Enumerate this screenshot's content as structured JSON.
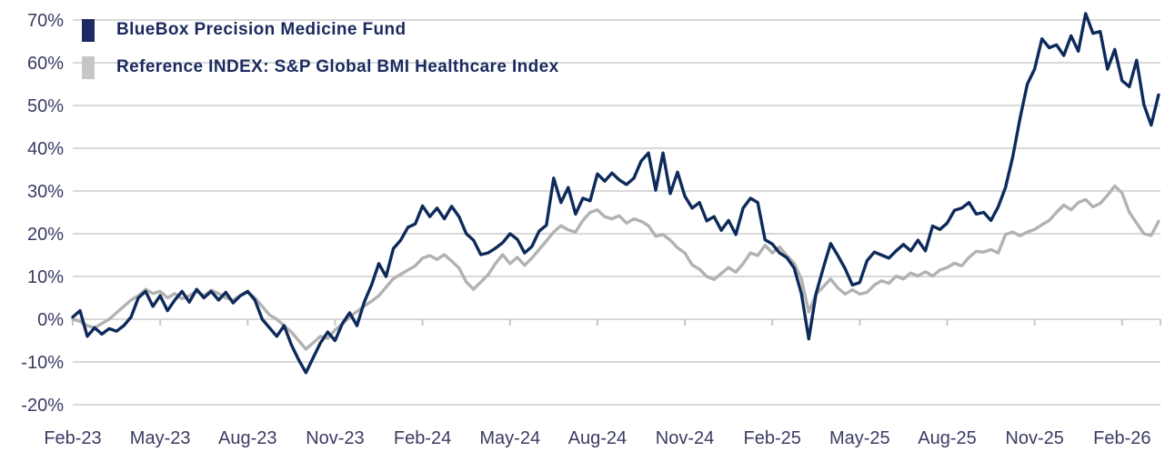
{
  "chart_data": {
    "type": "line",
    "title": "",
    "xlabel": "",
    "ylabel": "",
    "x_unit": "months since Feb-2023, sampled every 0.25 month",
    "x_start": 0,
    "x_step": 0.25,
    "x_tick_every_months": 3,
    "x_tick_labels": [
      "Feb-23",
      "May-23",
      "Aug-23",
      "Nov-23",
      "Feb-24",
      "May-24",
      "Aug-24",
      "Nov-24",
      "Feb-25",
      "May-25",
      "Aug-25",
      "Nov-25",
      "Feb-26"
    ],
    "y_ticks": [
      70,
      60,
      50,
      40,
      30,
      20,
      10,
      0,
      -10,
      -20
    ],
    "y_tick_suffix": "%",
    "ylim": [
      -20,
      70
    ],
    "grid": "horizontal",
    "legend_position": "top-left",
    "series": [
      {
        "name": "BlueBox Precision Medicine Fund",
        "color": "#0d2a5a",
        "swatch_color": "#1e2a62",
        "values": [
          0.5,
          2.0,
          -4.0,
          -2.0,
          -3.5,
          -2.2,
          -2.8,
          -1.5,
          0.5,
          5.0,
          6.5,
          3.0,
          5.5,
          2.0,
          4.5,
          6.5,
          4.0,
          7.0,
          5.0,
          6.5,
          4.5,
          6.3,
          3.8,
          5.5,
          6.5,
          4.5,
          0.0,
          -2.0,
          -4.0,
          -1.5,
          -6.0,
          -9.5,
          -12.5,
          -9.0,
          -5.5,
          -3.0,
          -5.0,
          -1.0,
          1.5,
          -1.5,
          4.0,
          8.0,
          13.0,
          10.0,
          16.5,
          18.5,
          21.5,
          22.3,
          26.5,
          24.0,
          26.0,
          23.5,
          26.4,
          24.0,
          20.0,
          18.5,
          15.1,
          15.5,
          16.6,
          17.9,
          20.0,
          18.7,
          15.5,
          17.0,
          20.6,
          22.0,
          33.0,
          27.3,
          30.8,
          24.6,
          28.3,
          27.7,
          34.0,
          32.3,
          34.2,
          32.6,
          31.5,
          33.0,
          37.0,
          38.9,
          30.2,
          38.9,
          29.4,
          34.4,
          28.8,
          26.0,
          27.3,
          23.0,
          24.0,
          20.8,
          23.1,
          19.8,
          26.0,
          28.3,
          27.3,
          18.6,
          17.6,
          15.5,
          14.4,
          12.0,
          6.0,
          -4.6,
          6.0,
          12.0,
          17.7,
          14.9,
          11.8,
          8.0,
          8.6,
          13.7,
          15.7,
          15.0,
          14.3,
          16.0,
          17.5,
          16.0,
          18.5,
          16.0,
          21.8,
          21.0,
          22.5,
          25.5,
          26.0,
          27.3,
          24.6,
          25.0,
          23.1,
          26.3,
          30.8,
          38.0,
          47.0,
          55.0,
          58.5,
          65.6,
          63.5,
          64.2,
          61.7,
          66.3,
          62.7,
          71.5,
          66.9,
          67.3,
          58.5,
          63.1,
          55.8,
          54.4,
          60.6,
          50.2,
          45.4,
          52.5
        ]
      },
      {
        "name": "Reference INDEX: S&P Global BMI Healthcare Index",
        "color": "#b2b2b2",
        "swatch_color": "#c7c7c7",
        "values": [
          0.0,
          -0.5,
          -1.5,
          -2.0,
          -1.0,
          0.0,
          1.5,
          3.0,
          4.5,
          5.5,
          7.0,
          6.0,
          6.5,
          5.0,
          6.0,
          4.8,
          5.5,
          6.5,
          5.5,
          6.8,
          6.0,
          5.0,
          4.5,
          5.5,
          6.3,
          5.0,
          3.0,
          1.0,
          0.0,
          -1.5,
          -3.0,
          -5.0,
          -7.0,
          -5.5,
          -4.0,
          -4.5,
          -2.5,
          -1.1,
          0.5,
          1.8,
          3.1,
          4.2,
          5.5,
          7.5,
          9.5,
          10.5,
          11.5,
          12.5,
          14.3,
          14.9,
          14.0,
          15.1,
          13.6,
          12.0,
          8.7,
          7.0,
          8.7,
          10.4,
          13.0,
          15.1,
          13.0,
          14.5,
          12.6,
          14.3,
          16.3,
          18.3,
          20.4,
          21.9,
          20.9,
          20.4,
          23.1,
          25.0,
          25.6,
          24.0,
          23.5,
          24.2,
          22.5,
          23.5,
          22.9,
          21.9,
          19.4,
          19.8,
          18.5,
          16.7,
          15.5,
          12.7,
          11.7,
          10.0,
          9.3,
          10.7,
          12.1,
          11.0,
          13.0,
          15.5,
          14.9,
          17.3,
          15.5,
          16.9,
          14.9,
          13.1,
          9.4,
          1.7,
          5.9,
          7.6,
          9.4,
          7.3,
          5.9,
          6.9,
          5.9,
          6.3,
          8.0,
          9.0,
          8.4,
          10.1,
          9.4,
          10.8,
          10.1,
          11.1,
          10.1,
          11.5,
          12.1,
          13.1,
          12.5,
          14.5,
          15.9,
          15.7,
          16.3,
          15.5,
          19.8,
          20.4,
          19.5,
          20.4,
          21.0,
          22.1,
          23.1,
          25.0,
          26.7,
          25.6,
          27.3,
          28.0,
          26.3,
          27.1,
          29.0,
          31.2,
          29.5,
          25.0,
          22.5,
          20.0,
          19.6,
          22.9
        ]
      }
    ]
  },
  "colors": {
    "background": "#ffffff",
    "grid": "#d9d9d9",
    "tick": "#c8c8c8",
    "axis_label": "#3a3b63",
    "legend_text": "#1b2a5e"
  }
}
